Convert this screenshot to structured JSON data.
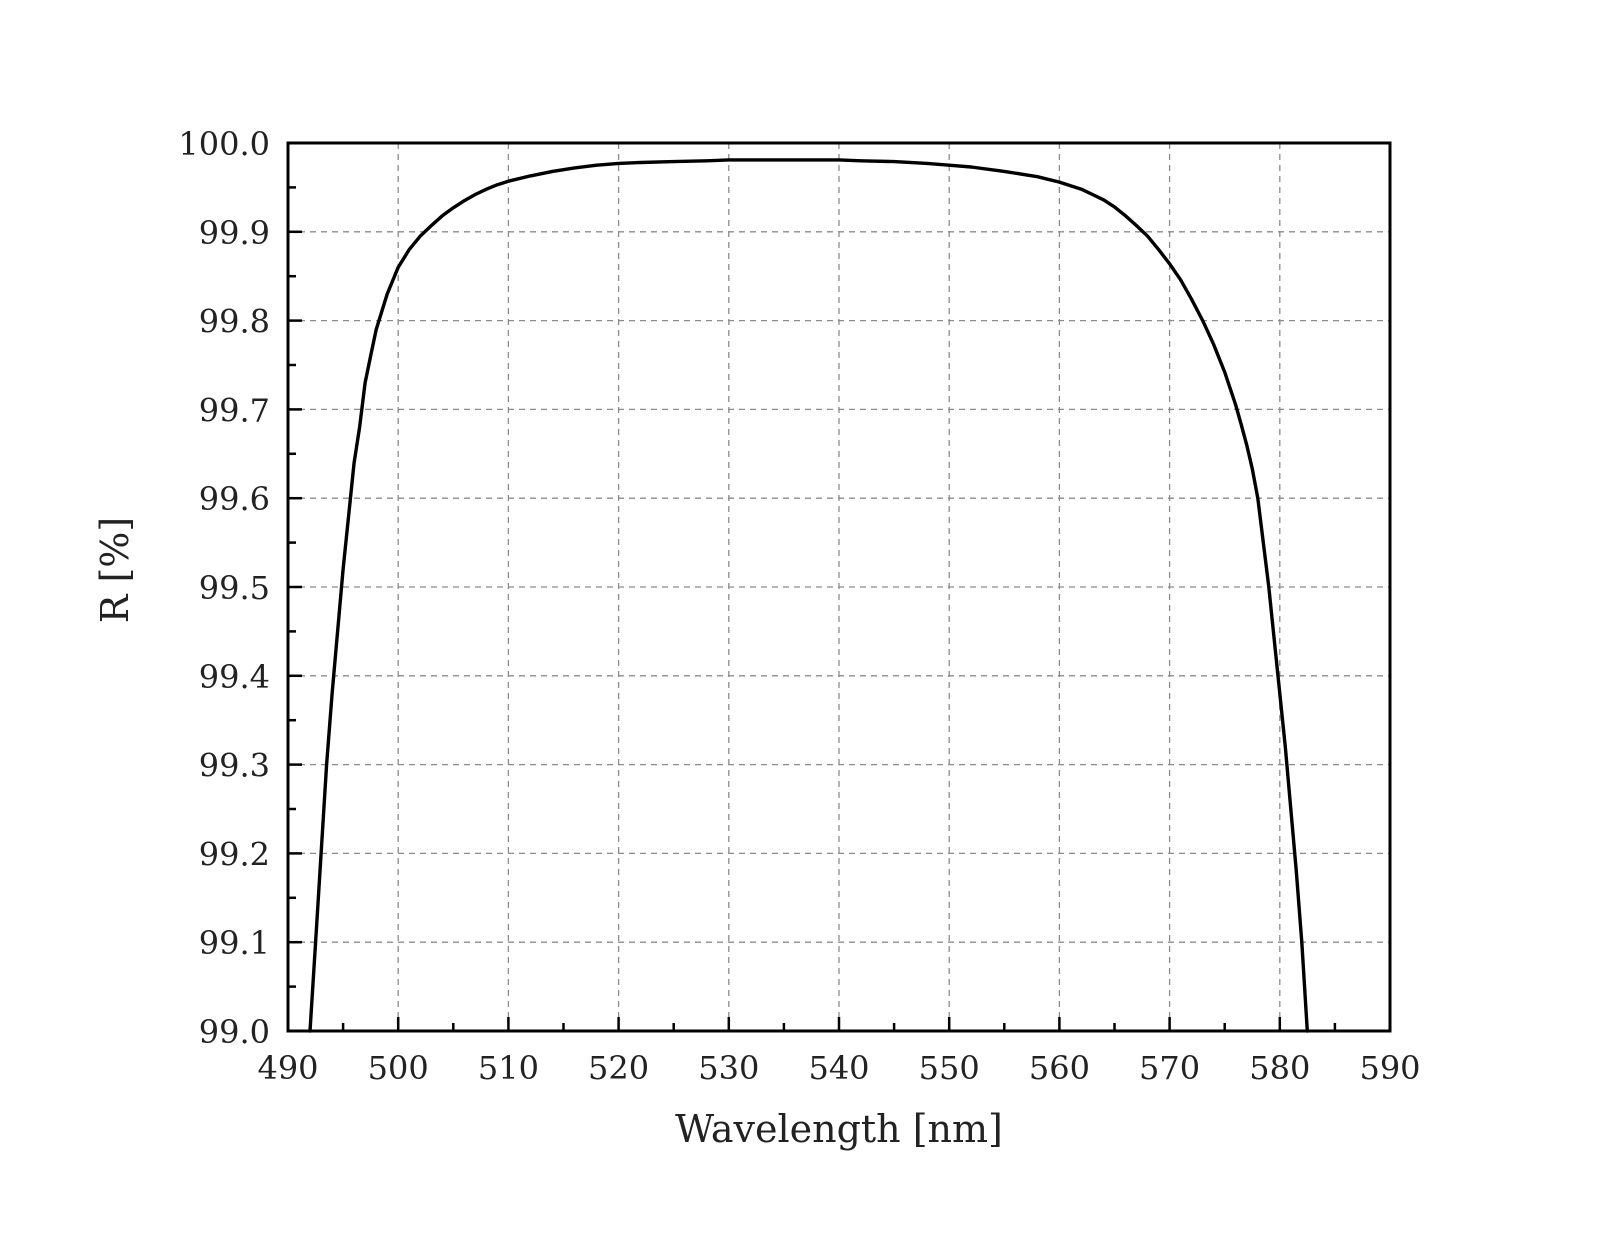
{
  "chart_data": {
    "type": "line",
    "title": "",
    "xlabel": "Wavelength [nm]",
    "ylabel": "R [%]",
    "xlim": [
      490,
      590
    ],
    "ylim": [
      99.0,
      100.0
    ],
    "x_ticks": [
      "490",
      "500",
      "510",
      "520",
      "530",
      "540",
      "550",
      "560",
      "570",
      "580",
      "590"
    ],
    "y_ticks": [
      "99.0",
      "99.1",
      "99.2",
      "99.3",
      "99.4",
      "99.5",
      "99.6",
      "99.7",
      "99.8",
      "99.9",
      "100.0"
    ],
    "grid": true,
    "legend": "none",
    "colors": {
      "line": "#000000",
      "grid": "#8c8c8c",
      "frame": "#000000"
    },
    "series": [
      {
        "x": [
          492.0,
          492.5,
          493.0,
          493.5,
          494.0,
          494.5,
          495.0,
          495.5,
          496.0,
          496.5,
          497.0,
          497.5,
          498.0,
          498.5,
          499.0,
          499.5,
          500.0,
          501.0,
          502.0,
          503.0,
          504.0,
          505.0,
          506.0,
          507.0,
          508.0,
          509.0,
          510.0,
          512.0,
          514.0,
          516.0,
          518.0,
          520.0,
          522.0,
          525.0,
          528.0,
          530.0,
          533.0,
          536.0,
          538.0,
          540.0,
          542.0,
          545.0,
          548.0,
          550.0,
          552.0,
          555.0,
          558.0,
          560.0,
          562.0,
          563.0,
          564.0,
          565.0,
          566.0,
          567.0,
          568.0,
          569.0,
          570.0,
          571.0,
          572.0,
          573.0,
          574.0,
          575.0,
          576.0,
          576.5,
          577.0,
          577.5,
          578.0,
          578.5,
          579.0,
          579.5,
          580.0,
          580.5,
          581.0,
          581.5,
          582.0,
          582.5
        ],
        "y": [
          99.0,
          99.1,
          99.2,
          99.3,
          99.38,
          99.45,
          99.52,
          99.58,
          99.64,
          99.68,
          99.73,
          99.76,
          99.79,
          99.81,
          99.83,
          99.845,
          99.86,
          99.88,
          99.895,
          99.907,
          99.918,
          99.927,
          99.935,
          99.942,
          99.948,
          99.953,
          99.957,
          99.963,
          99.968,
          99.972,
          99.975,
          99.977,
          99.978,
          99.979,
          99.98,
          99.981,
          99.981,
          99.981,
          99.981,
          99.981,
          99.98,
          99.979,
          99.977,
          99.975,
          99.973,
          99.968,
          99.962,
          99.956,
          99.948,
          99.942,
          99.936,
          99.928,
          99.918,
          99.907,
          99.895,
          99.88,
          99.864,
          99.846,
          99.824,
          99.8,
          99.773,
          99.742,
          99.705,
          99.683,
          99.66,
          99.633,
          99.6,
          99.55,
          99.5,
          99.44,
          99.38,
          99.32,
          99.25,
          99.18,
          99.1,
          99.0
        ]
      }
    ]
  }
}
